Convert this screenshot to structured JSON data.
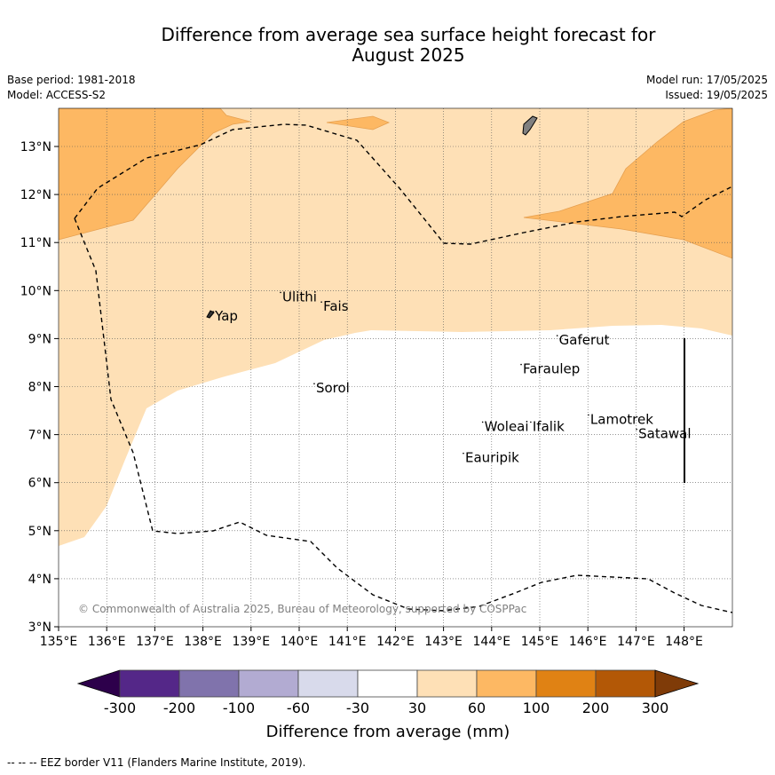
{
  "title_line1": "Difference from average sea surface height forecast for",
  "title_line2": "August 2025",
  "meta_left": {
    "base_period": "Base period: 1981-2018",
    "model": "Model: ACCESS-S2"
  },
  "meta_right": {
    "model_run": "Model run: 17/05/2025",
    "issued": "Issued: 19/05/2025"
  },
  "lon_labels": [
    "135°E",
    "136°E",
    "137°E",
    "138°E",
    "139°E",
    "140°E",
    "141°E",
    "142°E",
    "143°E",
    "144°E",
    "145°E",
    "146°E",
    "147°E",
    "148°E"
  ],
  "lat_labels": [
    "3°N",
    "4°N",
    "5°N",
    "6°N",
    "7°N",
    "8°N",
    "9°N",
    "10°N",
    "11°N",
    "12°N",
    "13°N"
  ],
  "places": [
    {
      "name": "Yap",
      "lon": 138.25,
      "lat": 9.45
    },
    {
      "name": "Ulithi",
      "lon": 139.65,
      "lat": 9.85
    },
    {
      "name": "Fais",
      "lon": 140.5,
      "lat": 9.65
    },
    {
      "name": "Gaferut",
      "lon": 145.4,
      "lat": 8.95
    },
    {
      "name": "Faraulep",
      "lon": 144.65,
      "lat": 8.35
    },
    {
      "name": "Sorol",
      "lon": 140.35,
      "lat": 7.95
    },
    {
      "name": "Woleai",
      "lon": 143.85,
      "lat": 7.15
    },
    {
      "name": "Ifalik",
      "lon": 144.85,
      "lat": 7.15
    },
    {
      "name": "Lamotrek",
      "lon": 146.05,
      "lat": 7.3
    },
    {
      "name": "Satawal",
      "lon": 147.05,
      "lat": 7.0
    },
    {
      "name": "Eauripik",
      "lon": 143.45,
      "lat": 6.5
    }
  ],
  "copyright": "© Commonwealth of Australia 2025, Bureau of Meteorology, supported by COSPPac",
  "colorbar": {
    "label": "Difference from average (mm)",
    "ticks": [
      "-300",
      "-200",
      "-100",
      "-60",
      "-30",
      "30",
      "60",
      "100",
      "200",
      "300"
    ],
    "colors": [
      "#2d004b",
      "#542788",
      "#8073ac",
      "#b2abd2",
      "#d8daeb",
      "#ffffff",
      "#fee0b6",
      "#fdb863",
      "#e08214",
      "#b35806",
      "#7f3b08"
    ]
  },
  "legend_footer": "--  --  -- EEZ border V11 (Flanders Marine Institute, 2019).",
  "map_colors": {
    "light": "#fee0b6",
    "mid": "#fdb863",
    "land": "#808080"
  }
}
